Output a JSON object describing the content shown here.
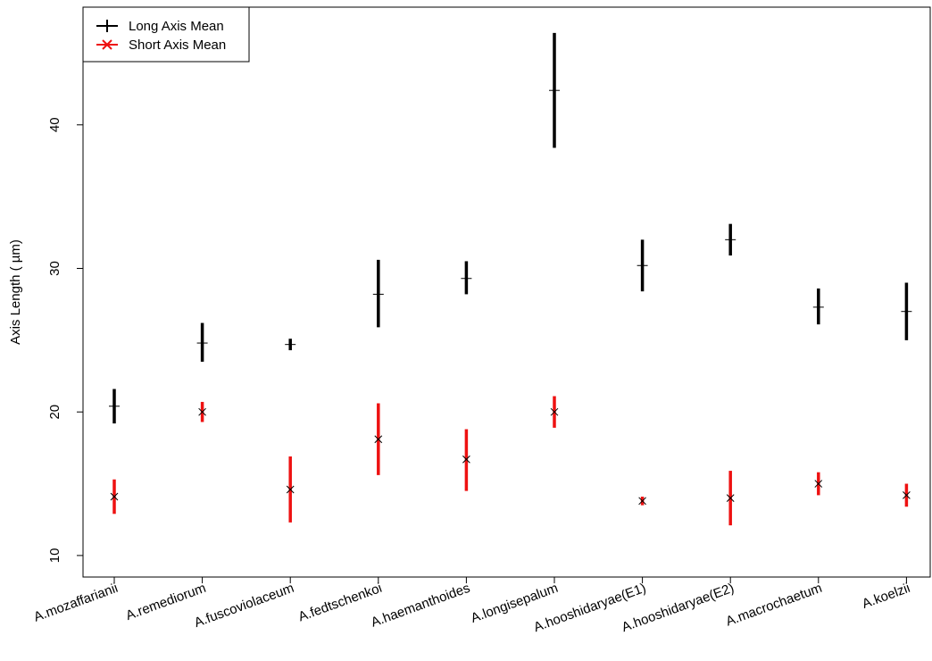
{
  "chart_data": {
    "type": "errorbar",
    "ylabel": "Axis Length ( µm)",
    "xlabel": "",
    "title": "",
    "ylim": [
      8.5,
      48.2
    ],
    "yticks": [
      10,
      20,
      30,
      40
    ],
    "grid": false,
    "legend_position": "top-left",
    "categories": [
      "A.mozaffarianii",
      "A.remediorum",
      "A.fuscoviolaceum",
      "A.fedtschenkoi",
      "A.haemanthoides",
      "A.longisepalum",
      "A.hooshidaryae(E1)",
      "A.hooshidaryae(E2)",
      "A.macrochaetum",
      "A.koelzii"
    ],
    "series": [
      {
        "name": "Long Axis Mean",
        "color": "#000000",
        "marker": "plus",
        "mean": [
          20.4,
          24.8,
          24.7,
          28.2,
          29.3,
          42.4,
          30.2,
          32.0,
          27.3,
          27.0
        ],
        "low": [
          19.2,
          23.5,
          24.3,
          25.9,
          28.2,
          38.4,
          28.4,
          30.9,
          26.1,
          25.0
        ],
        "high": [
          21.6,
          26.2,
          25.1,
          30.6,
          30.5,
          46.4,
          32.0,
          33.1,
          28.6,
          29.0
        ]
      },
      {
        "name": "Short Axis Mean",
        "color": "#ee1111",
        "marker": "cross",
        "mean": [
          14.1,
          20.0,
          14.6,
          18.1,
          16.7,
          20.0,
          13.8,
          14.0,
          15.0,
          14.2
        ],
        "low": [
          12.9,
          19.3,
          12.3,
          15.6,
          14.5,
          18.9,
          13.5,
          12.1,
          14.2,
          13.4
        ],
        "high": [
          15.3,
          20.7,
          16.9,
          20.6,
          18.8,
          21.1,
          14.1,
          15.9,
          15.8,
          15.0
        ]
      }
    ]
  }
}
